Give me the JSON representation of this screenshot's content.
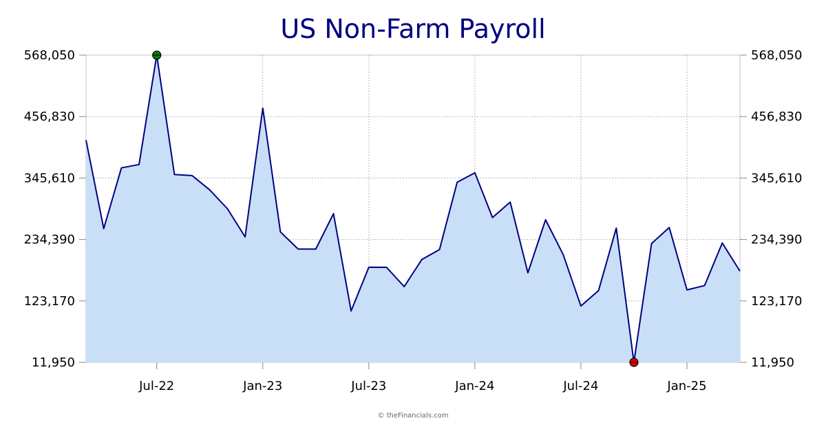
{
  "chart_data": {
    "type": "area",
    "title": "US Non-Farm Payroll",
    "xlabel": "",
    "ylabel": "",
    "ylim": [
      11950,
      568050
    ],
    "y_ticks": [
      "11,950",
      "123,170",
      "234,390",
      "345,610",
      "456,830",
      "568,050"
    ],
    "x_tick_labels": [
      "Jul-22",
      "Jan-23",
      "Jul-23",
      "Jan-24",
      "Jul-24",
      "Jan-25"
    ],
    "grid": true,
    "series": [
      {
        "color": "#000080",
        "fill": "#c9dff7",
        "points": [
          {
            "x": "2022-03",
            "y": 414000
          },
          {
            "x": "2022-04",
            "y": 254000
          },
          {
            "x": "2022-05",
            "y": 364000
          },
          {
            "x": "2022-06",
            "y": 370000
          },
          {
            "x": "2022-07",
            "y": 568000
          },
          {
            "x": "2022-08",
            "y": 352000
          },
          {
            "x": "2022-09",
            "y": 350000
          },
          {
            "x": "2022-10",
            "y": 324000
          },
          {
            "x": "2022-11",
            "y": 290000
          },
          {
            "x": "2022-12",
            "y": 239000
          },
          {
            "x": "2023-01",
            "y": 472000
          },
          {
            "x": "2023-02",
            "y": 248000
          },
          {
            "x": "2023-03",
            "y": 217000
          },
          {
            "x": "2023-04",
            "y": 217000
          },
          {
            "x": "2023-05",
            "y": 281000
          },
          {
            "x": "2023-06",
            "y": 105000
          },
          {
            "x": "2023-07",
            "y": 184000
          },
          {
            "x": "2023-08",
            "y": 184000
          },
          {
            "x": "2023-09",
            "y": 149000
          },
          {
            "x": "2023-10",
            "y": 198000
          },
          {
            "x": "2023-11",
            "y": 216000
          },
          {
            "x": "2023-12",
            "y": 338000
          },
          {
            "x": "2024-01",
            "y": 355000
          },
          {
            "x": "2024-02",
            "y": 274000
          },
          {
            "x": "2024-03",
            "y": 302000
          },
          {
            "x": "2024-04",
            "y": 174000
          },
          {
            "x": "2024-05",
            "y": 270000
          },
          {
            "x": "2024-06",
            "y": 207000
          },
          {
            "x": "2024-07",
            "y": 114000
          },
          {
            "x": "2024-08",
            "y": 142000
          },
          {
            "x": "2024-09",
            "y": 255000
          },
          {
            "x": "2024-10",
            "y": 12000
          },
          {
            "x": "2024-11",
            "y": 227000
          },
          {
            "x": "2024-12",
            "y": 256000
          },
          {
            "x": "2025-01",
            "y": 143000
          },
          {
            "x": "2025-02",
            "y": 151000
          },
          {
            "x": "2025-03",
            "y": 228000
          },
          {
            "x": "2025-04",
            "y": 177000
          }
        ]
      }
    ],
    "markers": [
      {
        "x": "2022-07",
        "y": 568000,
        "color": "#008000"
      },
      {
        "x": "2024-10",
        "y": 12000,
        "color": "#e00000"
      }
    ]
  },
  "credit": "© theFinancials.com"
}
